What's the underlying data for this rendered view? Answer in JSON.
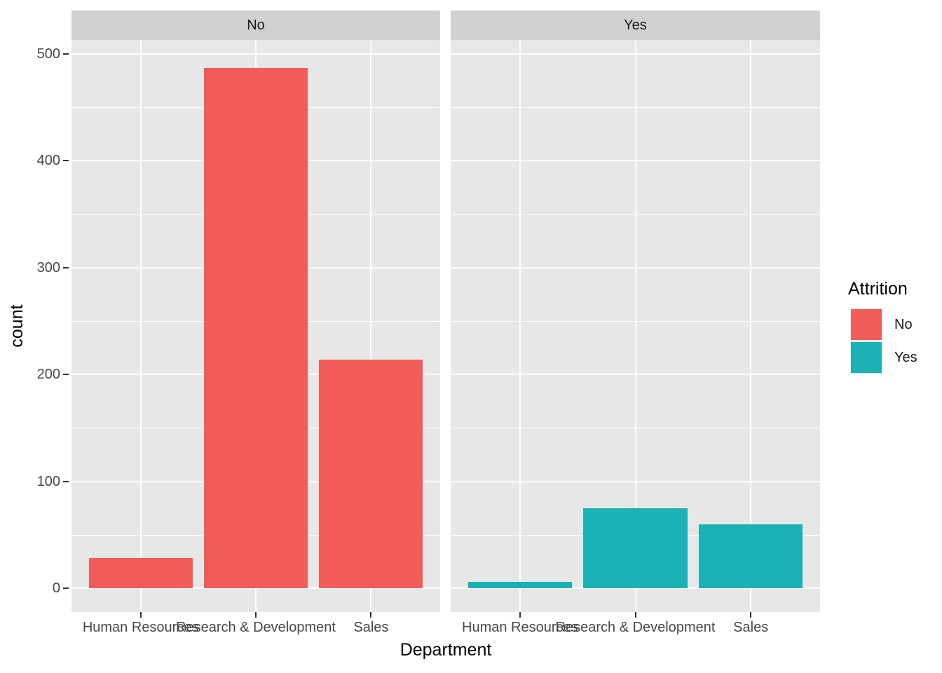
{
  "chart_data": {
    "type": "bar",
    "faceted_by": "Attrition",
    "xlabel": "Department",
    "ylabel": "count",
    "categories": [
      "Human Resources",
      "Research & Development",
      "Sales"
    ],
    "facets": [
      {
        "label": "No",
        "color": "#F25C58",
        "values": [
          28,
          487,
          214
        ]
      },
      {
        "label": "Yes",
        "color": "#1BB2B5",
        "values": [
          6,
          75,
          60
        ]
      }
    ],
    "ylim": [
      0,
      500
    ],
    "y_major_ticks": [
      0,
      100,
      200,
      300,
      400,
      500
    ],
    "y_minor_ticks": [
      50,
      150,
      250,
      350,
      450
    ],
    "grid": "on",
    "legend": {
      "title": "Attrition",
      "position": "right",
      "entries": [
        {
          "label": "No",
          "color": "#F25C58"
        },
        {
          "label": "Yes",
          "color": "#1BB2B5"
        }
      ]
    },
    "theme": {
      "panel_bg": "#E7E7E7",
      "strip_bg": "#D0D0D0",
      "grid_color": "#FFFFFF",
      "axis_text_color": "#474747",
      "tick_color": "#333333"
    }
  }
}
